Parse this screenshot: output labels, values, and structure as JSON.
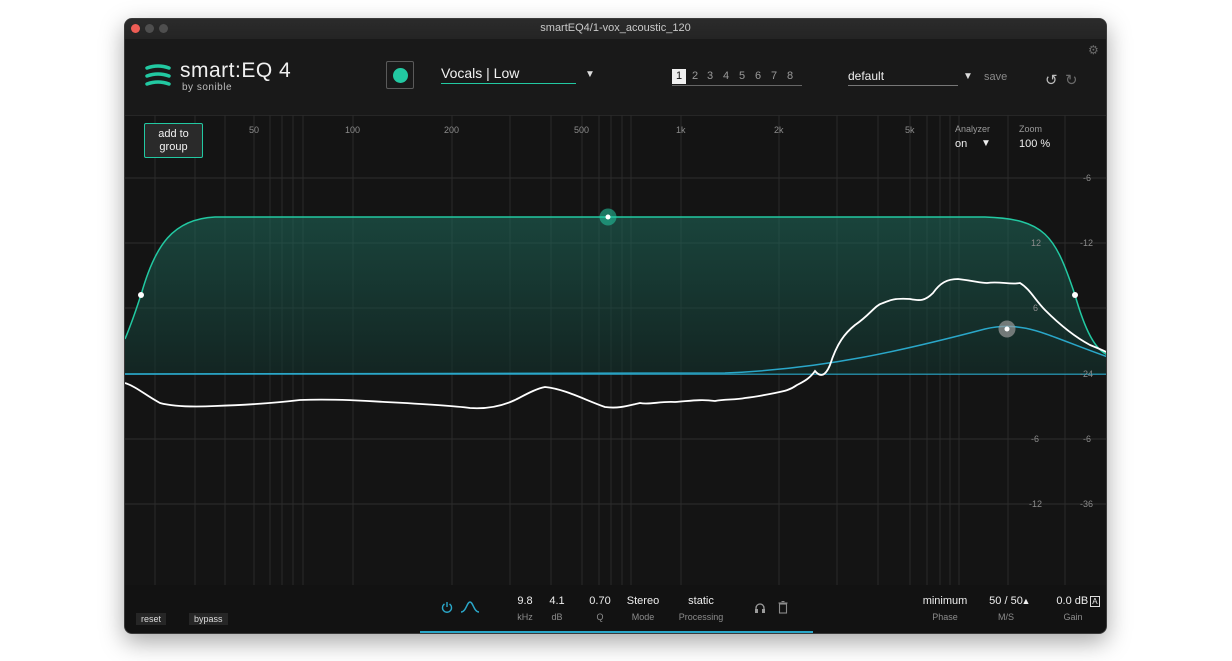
{
  "window": {
    "title": "smartEQ4/1-vox_acoustic_120"
  },
  "logo": {
    "name": "smart:EQ 4",
    "by": "by sonible"
  },
  "header": {
    "preset": "Vocals | Low",
    "preset_arrow": "▼",
    "slots": [
      "1",
      "2",
      "3",
      "4",
      "5",
      "6",
      "7",
      "8"
    ],
    "active_slot": "1",
    "default_preset": "default",
    "default_arrow": "▼",
    "save_label": "save",
    "undo_icon": "undo-icon",
    "redo_icon": "redo-icon",
    "gear_icon": "gear-icon"
  },
  "graph": {
    "add_group_label_1": "add to",
    "add_group_label_2": "group",
    "freq_labels": [
      "50",
      "100",
      "200",
      "500",
      "1k",
      "2k",
      "5k"
    ],
    "analyzer_label": "Analyzer",
    "analyzer_value": "on",
    "analyzer_arrow": "▼",
    "zoom_label": "Zoom",
    "zoom_value": "100 %",
    "db_right": [
      "-6",
      "-12",
      "-24",
      "-6",
      "-36"
    ],
    "db_inner": [
      "12",
      "6",
      "-6",
      "-12"
    ],
    "colors": {
      "accent": "#22c9a2",
      "blue": "#2aa7c9",
      "spectrum": "#ffffff"
    }
  },
  "footer": {
    "reset_label": "reset",
    "bypass_label": "bypass",
    "power_icon": "power-icon",
    "filter_icon": "bell-filter-icon",
    "freq_value": "9.8",
    "freq_unit": "kHz",
    "gain_value": "4.1",
    "gain_unit": "dB",
    "q_value": "0.70",
    "q_unit": "Q",
    "mode_value": "Stereo",
    "mode_label": "Mode",
    "processing_value": "static",
    "processing_label": "Processing",
    "headphones_icon": "headphones-icon",
    "trash_icon": "trash-icon",
    "phase_value": "minimum",
    "phase_label": "Phase",
    "ms_value": "50 / 50",
    "ms_arrow": "▲",
    "ms_label": "M/S",
    "out_gain_value": "0.0 dB",
    "auto_label": "A",
    "out_gain_label": "Gain"
  }
}
